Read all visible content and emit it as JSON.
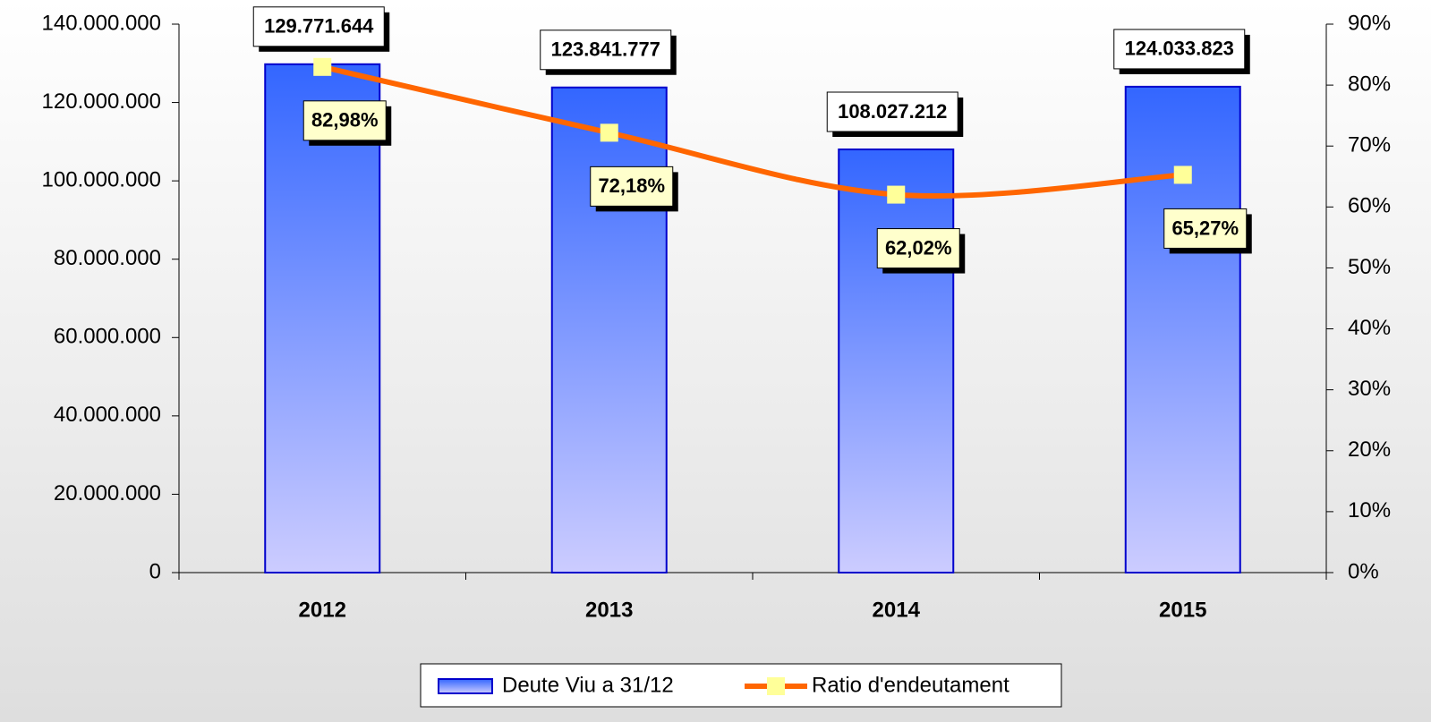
{
  "chart_data": {
    "type": "bar",
    "categories": [
      "2012",
      "2013",
      "2014",
      "2015"
    ],
    "series": [
      {
        "name": "Deute Viu a 31/12",
        "type": "bar",
        "color": "#3366ff",
        "values": [
          129771644,
          123841777,
          108027212,
          124033823
        ],
        "value_labels": [
          "129.771.644",
          "123.841.777",
          "108.027.212",
          "124.033.823"
        ]
      },
      {
        "name": "Ratio d'endeutament",
        "type": "line",
        "axis": "y2",
        "color": "#ff6600",
        "marker_color": "#ffff99",
        "values": [
          82.98,
          72.18,
          62.02,
          65.27
        ],
        "value_labels": [
          "82,98%",
          "72,18%",
          "62,02%",
          "65,27%"
        ]
      }
    ],
    "ylim": [
      0,
      140000000
    ],
    "yticks": [
      0,
      {
        "value": 20000000,
        "label": "20.000.000"
      },
      {
        "value": 40000000,
        "label": "40.000.000"
      },
      {
        "value": 60000000,
        "label": "60.000.000"
      },
      {
        "value": 80000000,
        "label": "80.000.000"
      },
      {
        "value": 100000000,
        "label": "100.000.000"
      },
      {
        "value": 120000000,
        "label": "120.000.000"
      },
      {
        "value": 140000000,
        "label": "140.000.000"
      }
    ],
    "y2lim": [
      0,
      90
    ],
    "y2ticks": [
      {
        "value": 0,
        "label": "0%"
      },
      {
        "value": 10,
        "label": "10%"
      },
      {
        "value": 20,
        "label": "20%"
      },
      {
        "value": 30,
        "label": "30%"
      },
      {
        "value": 40,
        "label": "40%"
      },
      {
        "value": 50,
        "label": "50%"
      },
      {
        "value": 60,
        "label": "60%"
      },
      {
        "value": 70,
        "label": "70%"
      },
      {
        "value": 80,
        "label": "80%"
      },
      {
        "value": 90,
        "label": "90%"
      }
    ],
    "legend": "bottom"
  }
}
